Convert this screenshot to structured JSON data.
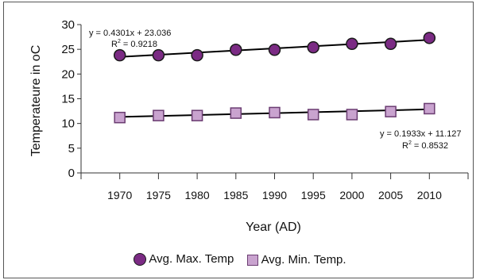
{
  "chart_data": {
    "type": "scatter",
    "x": [
      1970,
      1975,
      1980,
      1985,
      1990,
      1995,
      2000,
      2005,
      2010
    ],
    "xlabel": "Year (AD)",
    "ylabel": "Temperateure in oC",
    "xlim": [
      1965,
      2015
    ],
    "ylim": [
      0,
      30
    ],
    "yticks": [
      0,
      5,
      10,
      15,
      20,
      25,
      30
    ],
    "xticks": [
      1970,
      1975,
      1980,
      1985,
      1990,
      1995,
      2000,
      2005,
      2010
    ],
    "grid": false,
    "legend_position": "bottom",
    "series": [
      {
        "name": "Avg. Max. Temp",
        "marker": "circle",
        "color": "#7b2b84",
        "values": [
          23.8,
          23.8,
          23.8,
          24.9,
          24.9,
          25.4,
          26.1,
          26.1,
          27.3
        ],
        "trendline": {
          "slope": 0.4301,
          "intercept": 23.036,
          "equation": "y = 0.4301x + 23.036",
          "r2_prefix": "R",
          "r2_sup": "2",
          "r2_value": " = 0.9218"
        }
      },
      {
        "name": "Avg. Min. Temp.",
        "marker": "square",
        "color": "#c9a3cf",
        "values": [
          11.2,
          11.6,
          11.6,
          12.1,
          12.2,
          11.8,
          11.8,
          12.4,
          13.0
        ],
        "trendline": {
          "slope": 0.1933,
          "intercept": 11.127,
          "equation": "y = 0.1933x + 11.127",
          "r2_prefix": "R",
          "r2_sup": "2",
          "r2_value": " = 0.8532"
        }
      }
    ]
  }
}
